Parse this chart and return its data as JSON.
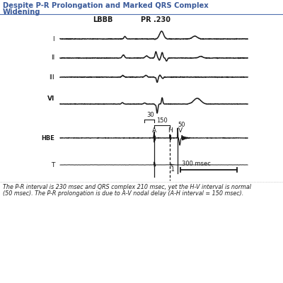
{
  "title_line1": "Despite P-R Prolongation and Marked QRS Complex",
  "title_line2": "Widening",
  "label_lbbb": "LBBB",
  "label_pr": "PR .230",
  "label_I": "I",
  "label_II": "II",
  "label_III": "III",
  "label_VI": "VI",
  "label_HBE": "HBE",
  "label_T": "T",
  "label_30": "30",
  "label_150": "150",
  "label_A": "A",
  "label_H": "H",
  "label_50": "50",
  "label_V": "V",
  "label_scale": "300 msec",
  "label_point1": ".1",
  "caption_line1": "The P-R interval is 230 msec and QRS complex 210 msec, yet the H-V interval is normal",
  "caption_line2": "(50 msec). The P-R prolongation is due to A-V nodal delay (A-H interval = 150 msec).",
  "bg_color": "#ffffff",
  "line_color": "#1a1a1a",
  "title_color": "#3a5a9a",
  "caption_color": "#222222",
  "fig_width": 4.0,
  "fig_height": 4.0
}
